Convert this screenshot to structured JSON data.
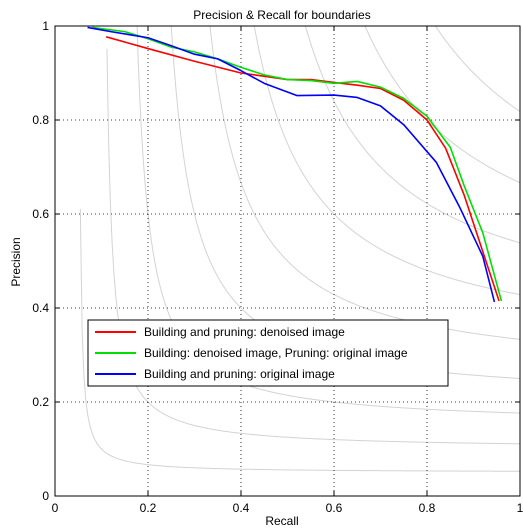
{
  "chart_data": {
    "type": "line",
    "title": "Precision & Recall for boundaries",
    "xlabel": "Recall",
    "ylabel": "Precision",
    "xlim": [
      0,
      1
    ],
    "ylim": [
      0,
      1
    ],
    "xticks": [
      0,
      0.2,
      0.4,
      0.6,
      0.8,
      1
    ],
    "yticks": [
      0,
      0.2,
      0.4,
      0.6,
      0.8,
      1
    ],
    "xtick_labels": [
      "0",
      "0.2",
      "0.4",
      "0.6",
      "0.8",
      "1"
    ],
    "ytick_labels": [
      "0",
      "0.2",
      "0.4",
      "0.6",
      "0.8",
      "1"
    ],
    "grid": true,
    "legend_position": "lower-left",
    "iso_f_contours": [
      0.1,
      0.2,
      0.3,
      0.4,
      0.5,
      0.6,
      0.7,
      0.8,
      0.9
    ],
    "iso_f_color": "#d3d3d3",
    "series": [
      {
        "name": "Building and pruning: denoised image",
        "color": "#ff0000",
        "x": [
          0.11,
          0.2,
          0.3,
          0.4,
          0.5,
          0.55,
          0.6,
          0.65,
          0.7,
          0.75,
          0.8,
          0.84,
          0.88,
          0.92,
          0.955
        ],
        "y": [
          0.977,
          0.952,
          0.925,
          0.9,
          0.886,
          0.886,
          0.88,
          0.874,
          0.867,
          0.842,
          0.8,
          0.74,
          0.64,
          0.52,
          0.415
        ]
      },
      {
        "name": "Building: denoised image, Pruning: original image",
        "color": "#00e000",
        "x": [
          0.08,
          0.15,
          0.2,
          0.25,
          0.3,
          0.35,
          0.4,
          0.45,
          0.5,
          0.55,
          0.6,
          0.65,
          0.7,
          0.75,
          0.8,
          0.85,
          0.88,
          0.92,
          0.96
        ],
        "y": [
          0.997,
          0.988,
          0.973,
          0.955,
          0.945,
          0.93,
          0.912,
          0.896,
          0.886,
          0.884,
          0.878,
          0.882,
          0.87,
          0.846,
          0.808,
          0.742,
          0.66,
          0.56,
          0.415
        ]
      },
      {
        "name": "Building and pruning: original image",
        "color": "#0000ff",
        "x": [
          0.07,
          0.12,
          0.2,
          0.25,
          0.3,
          0.35,
          0.4,
          0.45,
          0.52,
          0.6,
          0.65,
          0.7,
          0.75,
          0.82,
          0.87,
          0.92,
          0.945
        ],
        "y": [
          0.997,
          0.988,
          0.975,
          0.958,
          0.94,
          0.93,
          0.905,
          0.878,
          0.852,
          0.853,
          0.848,
          0.83,
          0.79,
          0.71,
          0.615,
          0.51,
          0.413
        ]
      }
    ]
  }
}
